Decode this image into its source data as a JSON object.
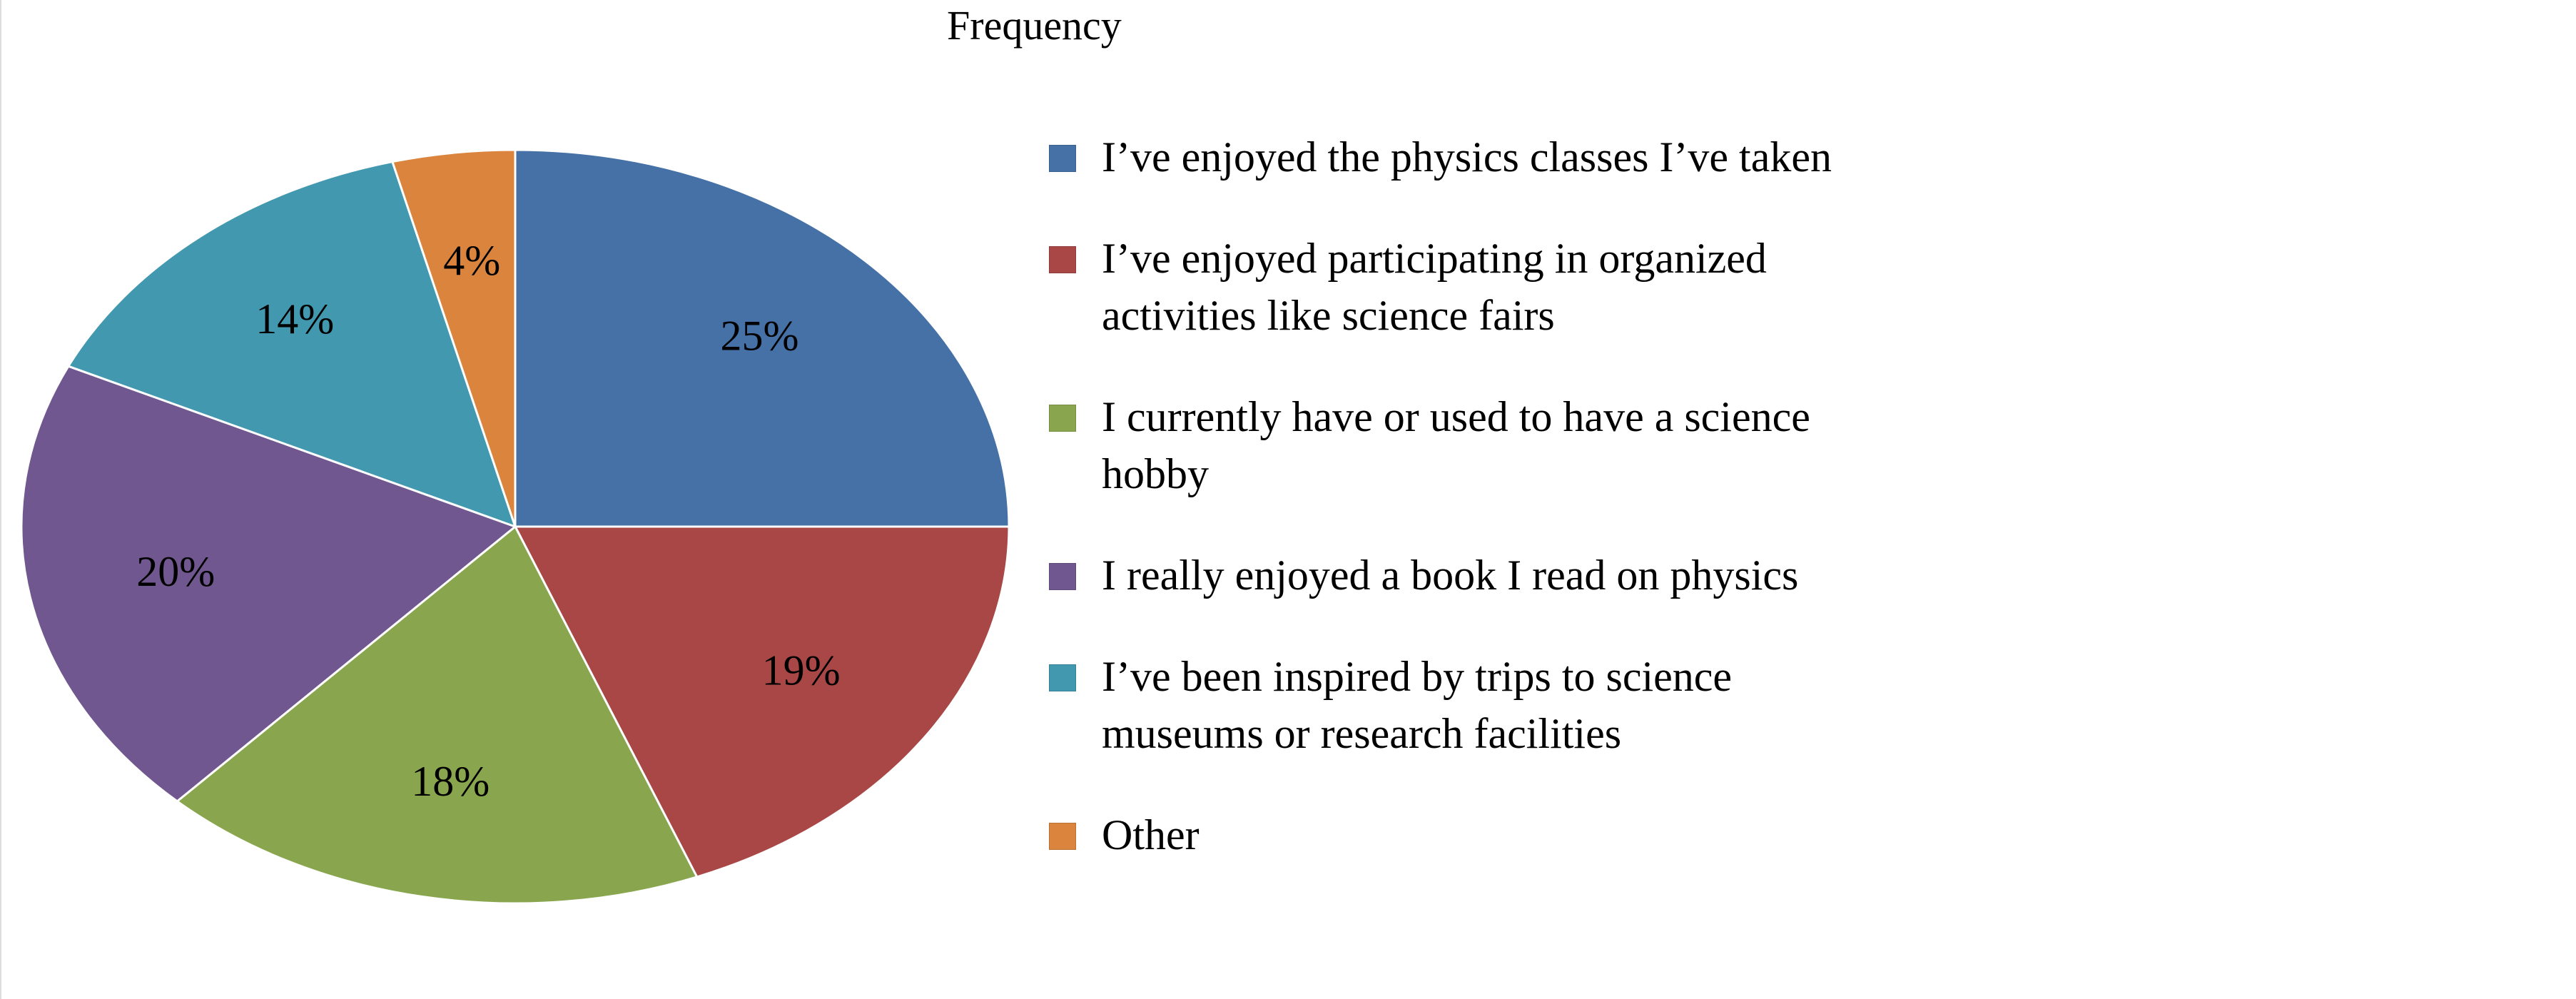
{
  "chart_data": {
    "type": "pie",
    "title": "Frequency",
    "categories": [
      "I’ve enjoyed the physics classes I’ve taken",
      "I’ve enjoyed participating in organized activities like science fairs",
      "I currently have or used to have a science hobby",
      "I really enjoyed a book I read on physics",
      "I’ve been inspired by trips to science museums or research facilities",
      "Other"
    ],
    "values": [
      25,
      19,
      18,
      20,
      14,
      4
    ],
    "labels": [
      "25%",
      "19%",
      "18%",
      "20%",
      "14%",
      "4%"
    ],
    "colors": [
      "#4571A7",
      "#A84745",
      "#89A64E",
      "#71578F",
      "#4198AF",
      "#DB843D"
    ],
    "legend_position": "right",
    "start_angle": "top",
    "direction": "clockwise"
  }
}
